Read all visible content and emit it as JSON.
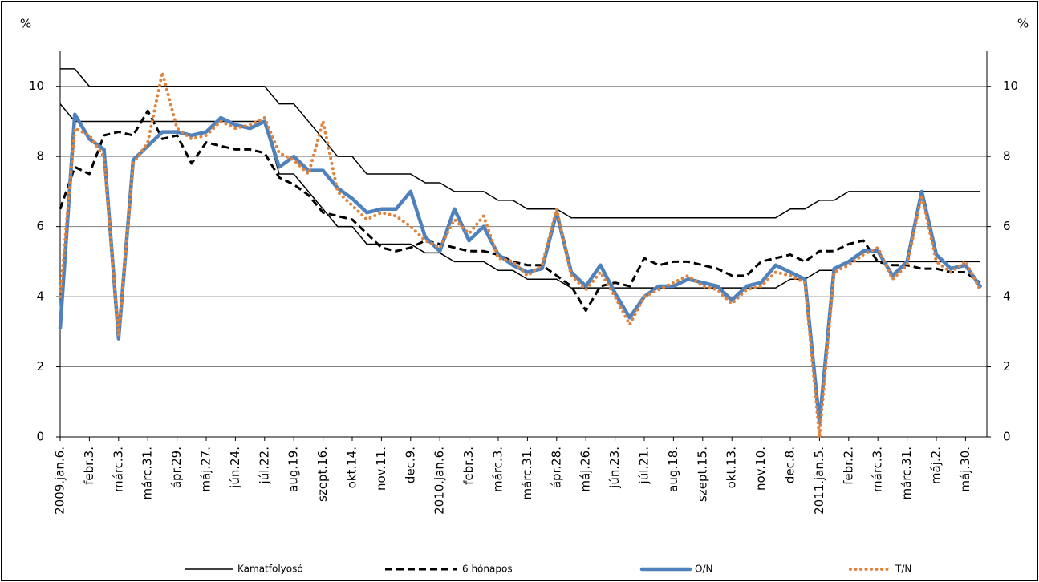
{
  "chart_data": {
    "type": "line",
    "y_label": "%",
    "y2_label": "%",
    "categories": [
      "2009.jan.6.",
      null,
      "febr.3.",
      null,
      "márc.3.",
      null,
      "márc.31.",
      null,
      "ápr.29.",
      null,
      "máj.27.",
      null,
      "jún.24.",
      null,
      "júl.22.",
      null,
      "aug.19.",
      null,
      "szept.16.",
      null,
      "okt.14.",
      null,
      "nov.11.",
      null,
      "dec.9.",
      null,
      "2010.jan.6.",
      null,
      "febr.3.",
      null,
      "márc.3.",
      null,
      "márc.31.",
      null,
      "ápr.28.",
      null,
      "máj.26.",
      null,
      "jún.23.",
      null,
      "júl.21.",
      null,
      "aug.18.",
      null,
      "szept.15.",
      null,
      "okt.13.",
      null,
      "nov.10.",
      null,
      "dec.8.",
      null,
      "2011.jan.5.",
      null,
      "febr.2.",
      null,
      "márc.3.",
      null,
      "márc.31.",
      null,
      "máj.2.",
      null,
      "máj.30.",
      null
    ],
    "series": [
      {
        "name": "Kamatfolyosó",
        "color": "#000000",
        "style": "solid",
        "values": [
          10.5,
          10.5,
          10,
          10,
          10,
          10,
          10,
          10,
          10,
          10,
          10,
          10,
          10,
          10,
          10,
          9.5,
          9.5,
          9,
          8.5,
          8,
          8,
          7.5,
          7.5,
          7.5,
          7.5,
          7.25,
          7.25,
          7,
          7,
          7,
          6.75,
          6.75,
          6.5,
          6.5,
          6.5,
          6.25,
          6.25,
          6.25,
          6.25,
          6.25,
          6.25,
          6.25,
          6.25,
          6.25,
          6.25,
          6.25,
          6.25,
          6.25,
          6.25,
          6.25,
          6.5,
          6.5,
          6.75,
          6.75,
          7,
          7,
          7,
          7,
          7,
          7,
          7,
          7,
          7,
          7
        ],
        "lower": [
          9.5,
          9,
          9,
          9,
          9,
          9,
          9,
          9,
          9,
          9,
          9,
          9,
          9,
          9,
          9,
          7.5,
          7.5,
          7,
          6.5,
          6,
          6,
          5.5,
          5.5,
          5.5,
          5.5,
          5.25,
          5.25,
          5,
          5,
          5,
          4.75,
          4.75,
          4.5,
          4.5,
          4.5,
          4.25,
          4.25,
          4.25,
          4.25,
          4.25,
          4.25,
          4.25,
          4.25,
          4.25,
          4.25,
          4.25,
          4.25,
          4.25,
          4.25,
          4.25,
          4.5,
          4.5,
          4.75,
          4.75,
          5,
          5,
          5,
          5,
          5,
          5,
          5,
          5,
          5,
          5
        ]
      },
      {
        "name": "6 hónapos",
        "color": "#000000",
        "style": "dashed",
        "values": [
          6.5,
          7.7,
          7.5,
          8.6,
          8.7,
          8.6,
          9.3,
          8.5,
          8.6,
          7.8,
          8.4,
          8.3,
          8.2,
          8.2,
          8.1,
          7.4,
          7.2,
          6.9,
          6.4,
          6.3,
          6.2,
          5.8,
          5.4,
          5.3,
          5.4,
          5.6,
          5.5,
          5.4,
          5.3,
          5.3,
          5.2,
          5.0,
          4.9,
          4.9,
          4.6,
          4.3,
          3.6,
          4.3,
          4.4,
          4.3,
          5.1,
          4.9,
          5.0,
          5.0,
          4.9,
          4.8,
          4.6,
          4.6,
          5.0,
          5.1,
          5.2,
          5.0,
          5.3,
          5.3,
          5.5,
          5.6,
          5.0,
          4.9,
          4.9,
          4.8,
          4.8,
          4.7,
          4.7,
          4.4
        ]
      },
      {
        "name": "O/N",
        "color": "#4f81bd",
        "style": "thick",
        "values": [
          3.1,
          9.2,
          8.5,
          8.2,
          2.8,
          7.9,
          8.3,
          8.7,
          8.7,
          8.6,
          8.7,
          9.1,
          8.9,
          8.8,
          9.0,
          7.7,
          8.0,
          7.6,
          7.6,
          7.1,
          6.8,
          6.4,
          6.5,
          6.5,
          7.0,
          5.7,
          5.3,
          6.5,
          5.6,
          6.0,
          5.2,
          4.9,
          4.7,
          4.8,
          6.4,
          4.7,
          4.3,
          4.9,
          4.1,
          3.4,
          4.0,
          4.3,
          4.3,
          4.5,
          4.4,
          4.3,
          3.9,
          4.3,
          4.4,
          4.9,
          4.7,
          4.5,
          0.4,
          4.8,
          5.0,
          5.3,
          5.3,
          4.6,
          5.0,
          7.0,
          5.2,
          4.8,
          4.9,
          4.3
        ]
      },
      {
        "name": "T/N",
        "color": "#e0823a",
        "style": "dotted",
        "values": [
          4.0,
          8.8,
          8.6,
          8.0,
          2.9,
          7.8,
          8.4,
          10.4,
          8.8,
          8.5,
          8.6,
          9.0,
          8.8,
          8.9,
          9.1,
          8.1,
          7.9,
          7.5,
          9.0,
          7.0,
          6.6,
          6.2,
          6.4,
          6.3,
          6.0,
          5.6,
          5.4,
          6.2,
          5.8,
          6.3,
          5.1,
          5.0,
          4.6,
          4.9,
          6.5,
          4.6,
          4.2,
          4.7,
          4.0,
          3.2,
          4.0,
          4.2,
          4.4,
          4.6,
          4.3,
          4.2,
          3.8,
          4.2,
          4.3,
          4.7,
          4.6,
          4.4,
          0.0,
          4.7,
          4.9,
          5.2,
          5.4,
          4.5,
          4.9,
          6.9,
          5.0,
          4.7,
          5.0,
          4.2
        ]
      }
    ],
    "ylim": [
      0,
      11
    ],
    "yticks": [
      0,
      2,
      4,
      6,
      8,
      10
    ],
    "y2lim": [
      0,
      11
    ],
    "y2ticks": [
      0,
      2,
      4,
      6,
      8,
      10
    ],
    "grid": true
  }
}
